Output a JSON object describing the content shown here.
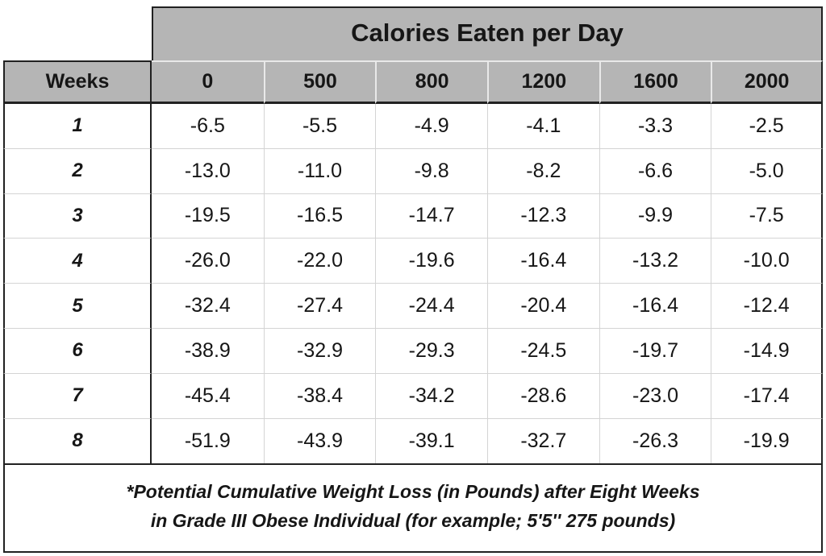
{
  "chart_data": {
    "type": "table",
    "title": "Calories Eaten per Day",
    "row_label": "Weeks",
    "columns": [
      0,
      500,
      800,
      1200,
      1600,
      2000
    ],
    "rows": [
      1,
      2,
      3,
      4,
      5,
      6,
      7,
      8
    ],
    "values": [
      [
        -6.5,
        -5.5,
        -4.9,
        -4.1,
        -3.3,
        -2.5
      ],
      [
        -13.0,
        -11.0,
        -9.8,
        -8.2,
        -6.6,
        -5.0
      ],
      [
        -19.5,
        -16.5,
        -14.7,
        -12.3,
        -9.9,
        -7.5
      ],
      [
        -26.0,
        -22.0,
        -19.6,
        -16.4,
        -13.2,
        -10.0
      ],
      [
        -32.4,
        -27.4,
        -24.4,
        -20.4,
        -16.4,
        -12.4
      ],
      [
        -38.9,
        -32.9,
        -29.3,
        -24.5,
        -19.7,
        -14.9
      ],
      [
        -45.4,
        -38.4,
        -34.2,
        -28.6,
        -23.0,
        -17.4
      ],
      [
        -51.9,
        -43.9,
        -39.1,
        -32.7,
        -26.3,
        -19.9
      ]
    ],
    "value_decimals": 1,
    "units": "pounds (cumulative weight change)",
    "annotations": [
      "*Potential Cumulative Weight Loss (in Pounds) after Eight Weeks",
      "in Grade III Obese Individual (for example; 5'5'' 275 pounds)"
    ]
  },
  "colors": {
    "header_bg": "#b5b5b5",
    "border_dark": "#212121",
    "grid_light": "#d4d4d4",
    "header_divider": "#e9e9e9",
    "text": "#161616",
    "background": "#ffffff"
  }
}
